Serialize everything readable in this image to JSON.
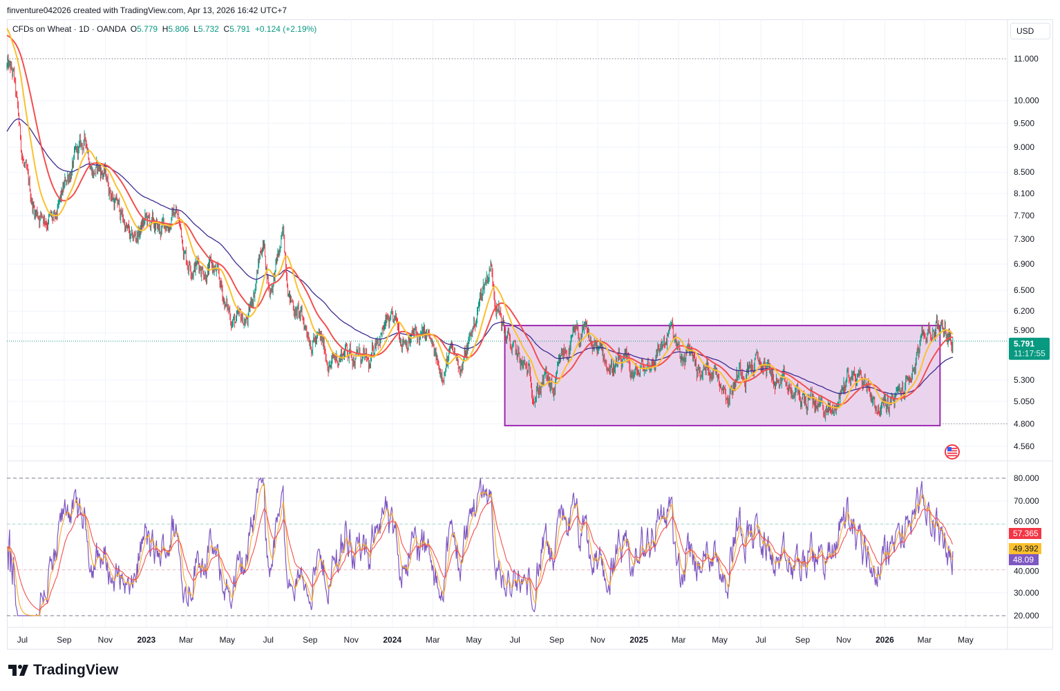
{
  "credit": "finventure042026 created with TradingView.com, Apr 13, 2026 16:42 UTC+7",
  "legend": {
    "symbol": "CFDs on Wheat · 1D · OANDA",
    "o_label": "O",
    "o": "5.779",
    "h_label": "H",
    "h": "5.806",
    "l_label": "L",
    "l": "5.732",
    "c_label": "C",
    "c": "5.791",
    "change": "+0.124 (+2.19%)"
  },
  "currency": "USD",
  "last_price": "5.791",
  "countdown": "11:17:55",
  "rsi_labels": {
    "red": "57.365",
    "yellow": "49.392",
    "purple": "48.09"
  },
  "brand": "TradingView",
  "colors": {
    "up": "#089981",
    "down": "#f23645",
    "fast_ma": "#fbc02d",
    "mid_ma": "#f44d4d",
    "slow_ma": "#3b2b8f",
    "range_fill": "#e6cdea",
    "range_border": "#9c27b0",
    "rsi": "#7e57c2"
  },
  "chart_data": {
    "type": "candlestick",
    "title": "CFDs on Wheat · 1D · OANDA",
    "start_date": "2022-06-08",
    "scale": "log",
    "ylim": [
      4.45,
      11.9
    ],
    "price_ticks": [
      "11.000",
      "10.000",
      "9.500",
      "9.000",
      "8.500",
      "8.100",
      "7.700",
      "7.300",
      "6.900",
      "6.500",
      "6.200",
      "5.900",
      "5.300",
      "5.050",
      "4.800",
      "4.560"
    ],
    "time_ticks": [
      {
        "label": "Jul",
        "day": 23,
        "bold": false
      },
      {
        "label": "Sep",
        "day": 85,
        "bold": false
      },
      {
        "label": "Nov",
        "day": 146,
        "bold": false
      },
      {
        "label": "2023",
        "day": 207,
        "bold": true
      },
      {
        "label": "Mar",
        "day": 266,
        "bold": false
      },
      {
        "label": "May",
        "day": 327,
        "bold": false
      },
      {
        "label": "Jul",
        "day": 388,
        "bold": false
      },
      {
        "label": "Sep",
        "day": 450,
        "bold": false
      },
      {
        "label": "Nov",
        "day": 511,
        "bold": false
      },
      {
        "label": "2024",
        "day": 572,
        "bold": true
      },
      {
        "label": "Mar",
        "day": 632,
        "bold": false
      },
      {
        "label": "May",
        "day": 693,
        "bold": false
      },
      {
        "label": "Jul",
        "day": 754,
        "bold": false
      },
      {
        "label": "Sep",
        "day": 816,
        "bold": false
      },
      {
        "label": "Nov",
        "day": 877,
        "bold": false
      },
      {
        "label": "2025",
        "day": 938,
        "bold": true
      },
      {
        "label": "Mar",
        "day": 997,
        "bold": false
      },
      {
        "label": "May",
        "day": 1058,
        "bold": false
      },
      {
        "label": "Jul",
        "day": 1119,
        "bold": false
      },
      {
        "label": "Sep",
        "day": 1181,
        "bold": false
      },
      {
        "label": "Nov",
        "day": 1242,
        "bold": false
      },
      {
        "label": "2026",
        "day": 1303,
        "bold": true
      },
      {
        "label": "Mar",
        "day": 1362,
        "bold": false
      },
      {
        "label": "May",
        "day": 1423,
        "bold": false
      }
    ],
    "close_path": [
      [
        0,
        10.8
      ],
      [
        10,
        10.5
      ],
      [
        21,
        9.0
      ],
      [
        31,
        8.2
      ],
      [
        41,
        7.8
      ],
      [
        62,
        7.7
      ],
      [
        72,
        7.5
      ],
      [
        92,
        8.5
      ],
      [
        108,
        8.9
      ],
      [
        118,
        9.1
      ],
      [
        128,
        8.6
      ],
      [
        144,
        8.5
      ],
      [
        159,
        8.0
      ],
      [
        174,
        7.6
      ],
      [
        185,
        7.2
      ],
      [
        205,
        7.6
      ],
      [
        226,
        7.4
      ],
      [
        251,
        7.8
      ],
      [
        267,
        7.0
      ],
      [
        287,
        6.9
      ],
      [
        308,
        6.8
      ],
      [
        328,
        6.2
      ],
      [
        344,
        6.0
      ],
      [
        359,
        6.1
      ],
      [
        380,
        7.3
      ],
      [
        390,
        6.5
      ],
      [
        410,
        7.3
      ],
      [
        421,
        6.4
      ],
      [
        441,
        6.0
      ],
      [
        462,
        5.8
      ],
      [
        482,
        5.5
      ],
      [
        503,
        5.7
      ],
      [
        523,
        5.6
      ],
      [
        539,
        5.4
      ],
      [
        549,
        5.9
      ],
      [
        564,
        6.0
      ],
      [
        585,
        5.9
      ],
      [
        605,
        5.85
      ],
      [
        626,
        5.8
      ],
      [
        641,
        5.4
      ],
      [
        657,
        5.6
      ],
      [
        677,
        5.5
      ],
      [
        693,
        6.0
      ],
      [
        708,
        6.6
      ],
      [
        718,
        6.9
      ],
      [
        728,
        6.3
      ],
      [
        739,
        5.9
      ],
      [
        754,
        5.6
      ],
      [
        770,
        5.4
      ],
      [
        785,
        5.2
      ],
      [
        800,
        5.3
      ],
      [
        811,
        5.1
      ],
      [
        826,
        5.6
      ],
      [
        841,
        5.8
      ],
      [
        857,
        5.85
      ],
      [
        872,
        5.7
      ],
      [
        893,
        5.5
      ],
      [
        913,
        5.45
      ],
      [
        934,
        5.35
      ],
      [
        954,
        5.5
      ],
      [
        975,
        5.8
      ],
      [
        985,
        5.95
      ],
      [
        1000,
        5.5
      ],
      [
        1016,
        5.65
      ],
      [
        1031,
        5.35
      ],
      [
        1047,
        5.5
      ],
      [
        1062,
        5.3
      ],
      [
        1072,
        5.15
      ],
      [
        1088,
        5.45
      ],
      [
        1108,
        5.5
      ],
      [
        1129,
        5.45
      ],
      [
        1149,
        5.2
      ],
      [
        1170,
        5.1
      ],
      [
        1190,
        5.05
      ],
      [
        1211,
        5.0
      ],
      [
        1226,
        4.9
      ],
      [
        1236,
        5.1
      ],
      [
        1247,
        5.35
      ],
      [
        1262,
        5.35
      ],
      [
        1277,
        5.25
      ],
      [
        1293,
        5.0
      ],
      [
        1308,
        5.0
      ],
      [
        1324,
        5.1
      ],
      [
        1339,
        5.3
      ],
      [
        1354,
        5.65
      ],
      [
        1370,
        5.95
      ],
      [
        1385,
        6.0
      ],
      [
        1396,
        5.9
      ],
      [
        1404,
        5.791
      ]
    ],
    "range_box": {
      "start_day": 739,
      "end_day": 1385,
      "top": 6.0,
      "bottom": 4.78
    },
    "hlines": [
      11.0,
      4.8
    ],
    "moving_averages": [
      {
        "name": "fast",
        "seed": 11.8
      },
      {
        "name": "mid",
        "seed": 11.6
      },
      {
        "name": "slow",
        "seed": 9.3
      }
    ],
    "rsi": {
      "period": 14,
      "ylim": [
        15,
        85
      ],
      "ticks": [
        "80.000",
        "70.000",
        "60.000",
        "40.000",
        "30.000",
        "20.000"
      ],
      "levels": [
        80,
        60,
        40,
        20
      ],
      "last": {
        "rsi": 48.09,
        "signal": 49.392,
        "slow": 57.365
      }
    }
  }
}
